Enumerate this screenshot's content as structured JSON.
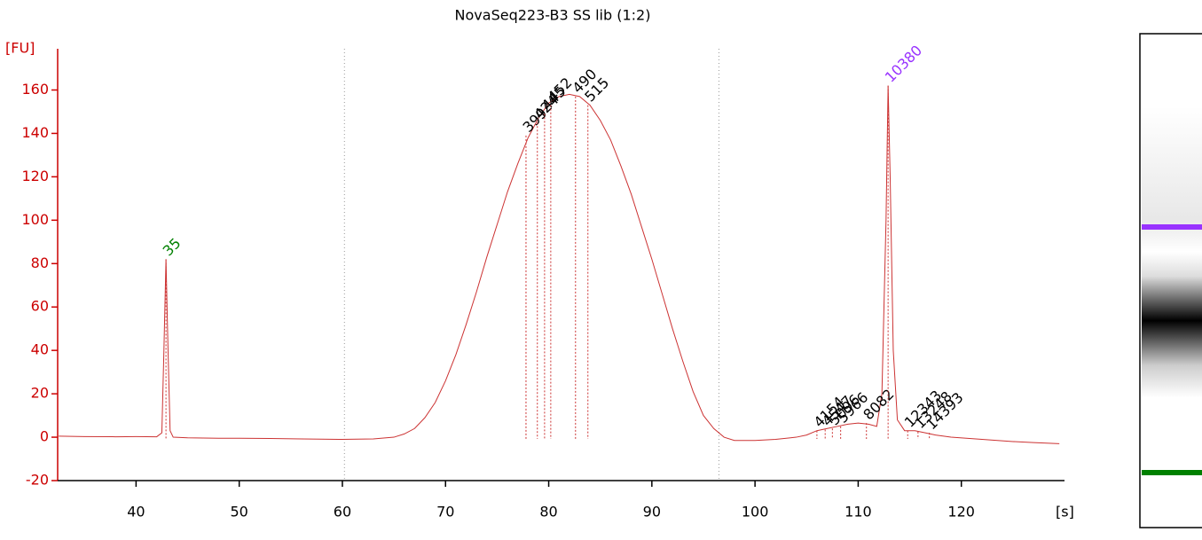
{
  "chart_data": {
    "type": "line",
    "title": "NovaSeq223-B3 SS lib (1:2)",
    "y_label": "[FU]",
    "x_label": "[s]",
    "axis_color": "#cc0000",
    "xlim": [
      32.4,
      130
    ],
    "ylim": [
      -20,
      179
    ],
    "xticks": [
      40,
      50,
      60,
      70,
      80,
      90,
      100,
      110,
      120
    ],
    "yticks": [
      -20,
      0,
      20,
      40,
      60,
      80,
      100,
      120,
      140,
      160
    ],
    "region_lines": [
      60.2,
      96.5
    ],
    "series": [
      {
        "name": "NovaSeq223-B3 SS lib (1:2)",
        "color": "#cc3333",
        "x": [
          32.5,
          35,
          38,
          40,
          42,
          42.5,
          42.7,
          42.9,
          43.1,
          43.3,
          43.6,
          45,
          48,
          50,
          53,
          56,
          60,
          63,
          65,
          66,
          67,
          68,
          69,
          70,
          71,
          72,
          73,
          74,
          75,
          76,
          77,
          78,
          79,
          80,
          81,
          82,
          83,
          84,
          85,
          86,
          87,
          88,
          89,
          90,
          91,
          92,
          93,
          94,
          95,
          96,
          97,
          98,
          100,
          102,
          104,
          105,
          106,
          107,
          108,
          109,
          110,
          111,
          111.8,
          112.3,
          112.7,
          112.9,
          113.1,
          113.4,
          113.8,
          114.5,
          115.5,
          116.5,
          117.5,
          119,
          122,
          125,
          127,
          129.5
        ],
        "values": [
          0.5,
          0.3,
          0.2,
          0.3,
          0.2,
          2,
          40,
          82,
          40,
          3,
          0,
          -0.3,
          -0.5,
          -0.5,
          -0.6,
          -0.8,
          -1,
          -0.8,
          0,
          1.5,
          4,
          9,
          16,
          26,
          38,
          52,
          67,
          83,
          98,
          113,
          126,
          138,
          147,
          154,
          157,
          158,
          157,
          153,
          146,
          137,
          125,
          112,
          97,
          82,
          66,
          50,
          35,
          21,
          10,
          4,
          0,
          -1.5,
          -1.5,
          -1,
          0,
          1,
          3,
          4,
          5,
          6,
          6.5,
          6,
          5,
          20,
          100,
          162,
          120,
          40,
          8,
          3,
          3,
          2,
          1,
          0,
          -1,
          -2,
          -2.5,
          -3
        ]
      }
    ],
    "peak_labels": [
      {
        "x": 42.9,
        "y": 82,
        "text": "35",
        "color": "#008000"
      },
      {
        "x": 77.8,
        "y": 139,
        "text": "399",
        "color": "#000000"
      },
      {
        "x": 78.9,
        "y": 145,
        "text": "424",
        "color": "#000000"
      },
      {
        "x": 79.6,
        "y": 149,
        "text": "445",
        "color": "#000000"
      },
      {
        "x": 80.2,
        "y": 153,
        "text": "452",
        "color": "#000000"
      },
      {
        "x": 82.6,
        "y": 157,
        "text": "490",
        "color": "#000000"
      },
      {
        "x": 83.8,
        "y": 153,
        "text": "515",
        "color": "#000000"
      },
      {
        "x": 106,
        "y": 3,
        "text": "4154",
        "color": "#000000"
      },
      {
        "x": 106.8,
        "y": 3.5,
        "text": "4547",
        "color": "#000000"
      },
      {
        "x": 107.5,
        "y": 4,
        "text": "5096",
        "color": "#000000"
      },
      {
        "x": 108.3,
        "y": 5,
        "text": "5966",
        "color": "#000000"
      },
      {
        "x": 110.8,
        "y": 6.5,
        "text": "8082",
        "color": "#000000"
      },
      {
        "x": 112.9,
        "y": 162,
        "text": "10380",
        "color": "#9933ff"
      },
      {
        "x": 114.8,
        "y": 3,
        "text": "12343",
        "color": "#000000"
      },
      {
        "x": 115.8,
        "y": 2.5,
        "text": "13248",
        "color": "#000000"
      },
      {
        "x": 116.9,
        "y": 2,
        "text": "14393",
        "color": "#000000"
      }
    ]
  }
}
